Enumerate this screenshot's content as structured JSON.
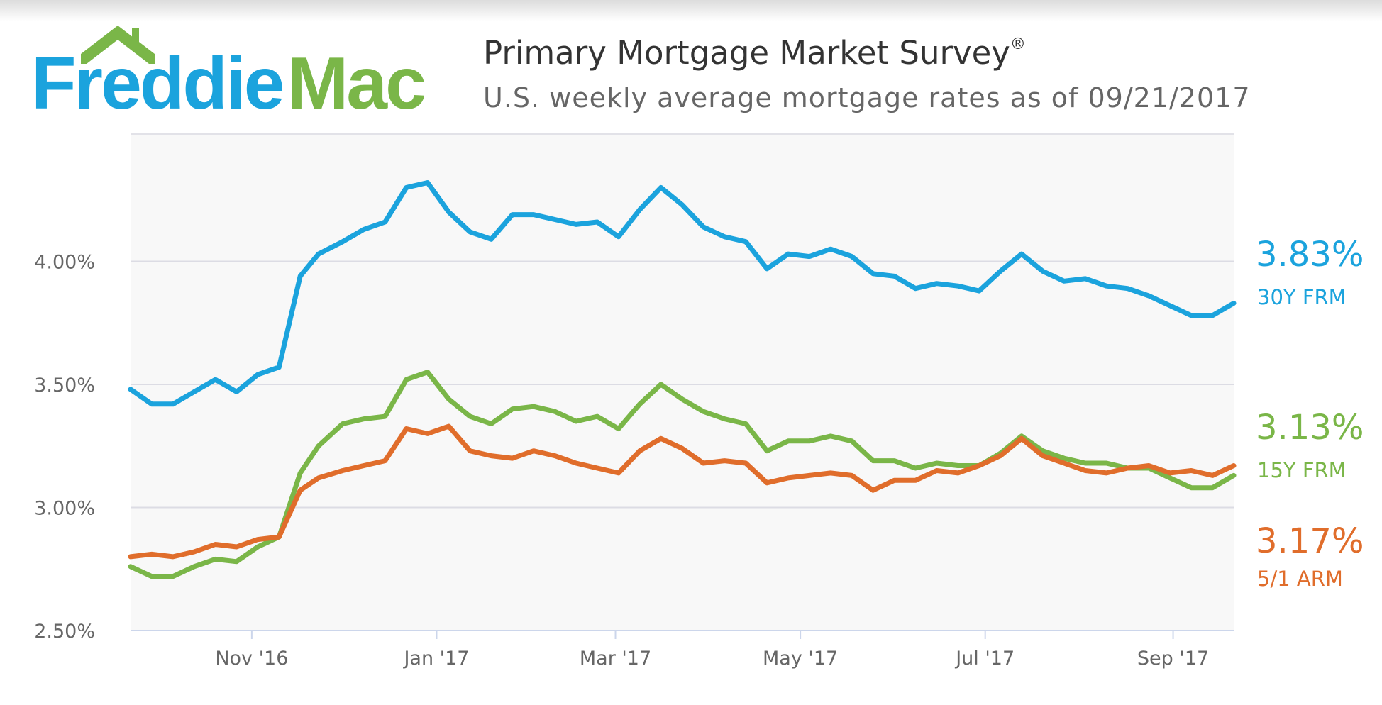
{
  "logo": {
    "part1": "Freddie",
    "part2": "Mac",
    "icon": "house-roof-icon"
  },
  "header": {
    "title": "Primary Mortgage Market Survey",
    "title_mark": "®",
    "subtitle": "U.S. weekly average mortgage rates as of 09/21/2017"
  },
  "chart_data": {
    "type": "line",
    "title": "Primary Mortgage Market Survey®",
    "subtitle": "U.S. weekly average mortgage rates as of 09/21/2017",
    "x": [
      "2016-09-22",
      "2016-09-29",
      "2016-10-06",
      "2016-10-13",
      "2016-10-20",
      "2016-10-27",
      "2016-11-03",
      "2016-11-10",
      "2016-11-17",
      "2016-11-23",
      "2016-12-01",
      "2016-12-08",
      "2016-12-15",
      "2016-12-22",
      "2016-12-29",
      "2017-01-05",
      "2017-01-12",
      "2017-01-19",
      "2017-01-26",
      "2017-02-02",
      "2017-02-09",
      "2017-02-16",
      "2017-02-23",
      "2017-03-02",
      "2017-03-09",
      "2017-03-16",
      "2017-03-23",
      "2017-03-30",
      "2017-04-06",
      "2017-04-13",
      "2017-04-20",
      "2017-04-27",
      "2017-05-04",
      "2017-05-11",
      "2017-05-18",
      "2017-05-25",
      "2017-06-01",
      "2017-06-08",
      "2017-06-15",
      "2017-06-22",
      "2017-06-29",
      "2017-07-06",
      "2017-07-13",
      "2017-07-20",
      "2017-07-27",
      "2017-08-03",
      "2017-08-10",
      "2017-08-17",
      "2017-08-24",
      "2017-08-31",
      "2017-09-07",
      "2017-09-14",
      "2017-09-21"
    ],
    "x_ticks": [
      {
        "date": "2016-11-01",
        "label": "Nov '16"
      },
      {
        "date": "2017-01-01",
        "label": "Jan '17"
      },
      {
        "date": "2017-03-01",
        "label": "Mar '17"
      },
      {
        "date": "2017-05-01",
        "label": "May '17"
      },
      {
        "date": "2017-07-01",
        "label": "Jul '17"
      },
      {
        "date": "2017-09-01",
        "label": "Sep '17"
      }
    ],
    "y_ticks": [
      {
        "value": 2.5,
        "label": "2.50%"
      },
      {
        "value": 3.0,
        "label": "3.00%"
      },
      {
        "value": 3.5,
        "label": "3.50%"
      },
      {
        "value": 4.0,
        "label": "4.00%"
      }
    ],
    "ylim": [
      2.5,
      4.5
    ],
    "xlabel": "",
    "ylabel": "",
    "grid": true,
    "series": [
      {
        "name": "30Y FRM",
        "end_label": "3.83%",
        "color": "#1ba3dd",
        "values": [
          3.48,
          3.42,
          3.42,
          3.47,
          3.52,
          3.47,
          3.54,
          3.57,
          3.94,
          4.03,
          4.08,
          4.13,
          4.16,
          4.3,
          4.32,
          4.2,
          4.12,
          4.09,
          4.19,
          4.19,
          4.17,
          4.15,
          4.16,
          4.1,
          4.21,
          4.3,
          4.23,
          4.14,
          4.1,
          4.08,
          3.97,
          4.03,
          4.02,
          4.05,
          4.02,
          3.95,
          3.94,
          3.89,
          3.91,
          3.9,
          3.88,
          3.96,
          4.03,
          3.96,
          3.92,
          3.93,
          3.9,
          3.89,
          3.86,
          3.82,
          3.78,
          3.78,
          3.83
        ]
      },
      {
        "name": "15Y FRM",
        "end_label": "3.13%",
        "color": "#7ab648",
        "values": [
          2.76,
          2.72,
          2.72,
          2.76,
          2.79,
          2.78,
          2.84,
          2.88,
          3.14,
          3.25,
          3.34,
          3.36,
          3.37,
          3.52,
          3.55,
          3.44,
          3.37,
          3.34,
          3.4,
          3.41,
          3.39,
          3.35,
          3.37,
          3.32,
          3.42,
          3.5,
          3.44,
          3.39,
          3.36,
          3.34,
          3.23,
          3.27,
          3.27,
          3.29,
          3.27,
          3.19,
          3.19,
          3.16,
          3.18,
          3.17,
          3.17,
          3.22,
          3.29,
          3.23,
          3.2,
          3.18,
          3.18,
          3.16,
          3.16,
          3.12,
          3.08,
          3.08,
          3.13
        ]
      },
      {
        "name": "5/1 ARM",
        "end_label": "3.17%",
        "color": "#e06d2b",
        "values": [
          2.8,
          2.81,
          2.8,
          2.82,
          2.85,
          2.84,
          2.87,
          2.88,
          3.07,
          3.12,
          3.15,
          3.17,
          3.19,
          3.32,
          3.3,
          3.33,
          3.23,
          3.21,
          3.2,
          3.23,
          3.21,
          3.18,
          3.16,
          3.14,
          3.23,
          3.28,
          3.24,
          3.18,
          3.19,
          3.18,
          3.1,
          3.12,
          3.13,
          3.14,
          3.13,
          3.07,
          3.11,
          3.11,
          3.15,
          3.14,
          3.17,
          3.21,
          3.28,
          3.21,
          3.18,
          3.15,
          3.14,
          3.16,
          3.17,
          3.14,
          3.15,
          3.13,
          3.17
        ]
      }
    ]
  }
}
